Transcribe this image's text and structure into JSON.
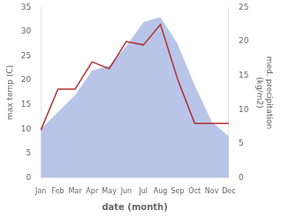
{
  "chart_data": {
    "type": "line",
    "xlabel": "date (month)",
    "ylabel": "max temp (C)",
    "y2label": "med. precipitation\n(kg/m2)",
    "categories": [
      "Jan",
      "Feb",
      "Mar",
      "Apr",
      "May",
      "Jun",
      "Jul",
      "Aug",
      "Sep",
      "Oct",
      "Nov",
      "Dec"
    ],
    "series": [
      {
        "type": "area",
        "color": "#b8c4e8",
        "values": [
          10.0,
          13.5,
          17.0,
          22.0,
          23.0,
          27.0,
          32.0,
          33.0,
          27.5,
          19.0,
          11.5,
          8.5
        ]
      },
      {
        "type": "line",
        "color": "#b03030",
        "axis": "y2",
        "values": [
          7.0,
          13.0,
          13.0,
          17.0,
          16.0,
          20.0,
          19.5,
          22.5,
          14.5,
          8.0,
          8.0,
          8.0
        ]
      }
    ],
    "ylim": [
      0,
      35
    ],
    "yticks": [
      0,
      5,
      10,
      15,
      20,
      25,
      30,
      35
    ],
    "y2lim": [
      0,
      25
    ],
    "y2ticks": [
      0,
      5,
      10,
      15,
      20,
      25
    ],
    "grid": false
  }
}
